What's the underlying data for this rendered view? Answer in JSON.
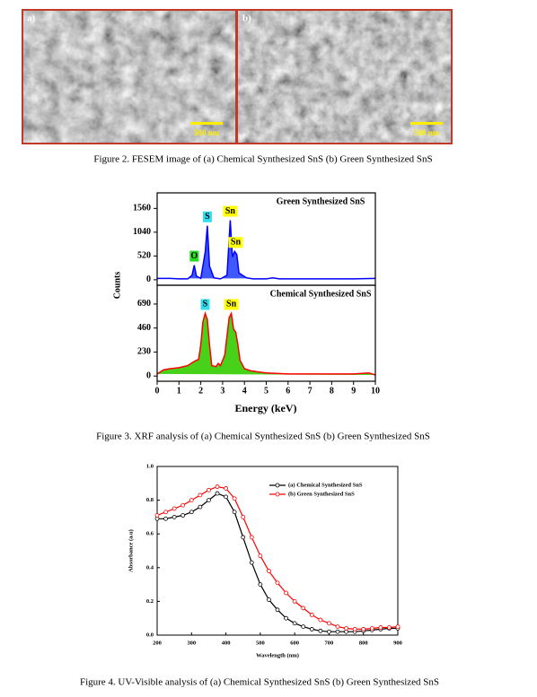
{
  "figures": [
    {
      "caption": "Figure 2. FESEM image of (a) Chemical Synthesized SnS  (b) Green Synthesized SnS",
      "panels": [
        {
          "label": "a)",
          "scale": "500 nm"
        },
        {
          "label": "b)",
          "scale": "500 nm"
        }
      ]
    },
    {
      "caption": "Figure 3. XRF analysis of (a) Chemical Synthesized SnS  (b) Green Synthesized SnS",
      "chart": {
        "type": "area",
        "xlabel": "Energy (keV)",
        "ylabel": "Counts",
        "xlim": [
          0,
          10
        ],
        "xticks": [
          0,
          1,
          2,
          3,
          4,
          5,
          6,
          7,
          8,
          9,
          10
        ],
        "panels": [
          {
            "name": "Green Synthesized SnS",
            "color": "#0000ff",
            "fill": "#1f3cff",
            "ylim": [
              -120,
              1900
            ],
            "yticks": [
              0,
              520,
              1040,
              1560
            ],
            "x": [
              0,
              0.3,
              0.6,
              1.0,
              1.4,
              1.6,
              1.7,
              1.8,
              2.0,
              2.2,
              2.3,
              2.4,
              2.6,
              2.9,
              3.2,
              3.35,
              3.45,
              3.55,
              3.65,
              3.75,
              3.9,
              4.1,
              4.4,
              5.0,
              5.3,
              5.6,
              6,
              7,
              8,
              9,
              10
            ],
            "values": [
              30,
              30,
              30,
              20,
              20,
              100,
              320,
              80,
              30,
              600,
              1180,
              300,
              40,
              20,
              100,
              1300,
              500,
              620,
              550,
              150,
              100,
              40,
              20,
              20,
              40,
              20,
              20,
              20,
              20,
              20,
              30
            ],
            "peaks": [
              {
                "label": "O",
                "x": 1.7,
                "color": "#22dd22"
              },
              {
                "label": "S",
                "x": 2.3,
                "color": "#33ddee"
              },
              {
                "label": "Sn",
                "x": 3.35,
                "color": "#ffff00"
              },
              {
                "label": "Sn",
                "x": 3.6,
                "color": "#ffff00"
              }
            ]
          },
          {
            "name": "Chemical Synthesized SnS",
            "color": "#ff0000",
            "fill": "#33cc00",
            "ylim": [
              -50,
              870
            ],
            "yticks": [
              0,
              230,
              460,
              690
            ],
            "x": [
              0,
              0.3,
              0.6,
              1.0,
              1.4,
              1.7,
              1.9,
              2.0,
              2.1,
              2.2,
              2.3,
              2.4,
              2.5,
              2.7,
              2.8,
              2.9,
              3.1,
              3.3,
              3.4,
              3.5,
              3.6,
              3.7,
              3.8,
              4.0,
              4.3,
              4.6,
              5,
              6,
              7,
              8,
              9,
              9.7,
              10
            ],
            "values": [
              20,
              60,
              70,
              80,
              100,
              140,
              160,
              300,
              520,
              600,
              540,
              300,
              100,
              90,
              120,
              100,
              200,
              560,
              600,
              450,
              420,
              300,
              150,
              70,
              50,
              40,
              30,
              20,
              20,
              20,
              20,
              30,
              10
            ],
            "peaks": [
              {
                "label": "S",
                "x": 2.2,
                "color": "#33ddee"
              },
              {
                "label": "Sn",
                "x": 3.4,
                "color": "#ffff00"
              }
            ]
          }
        ]
      }
    },
    {
      "caption": "Figure 4. UV-Visible analysis of (a) Chemical Synthesized SnS  (b) Green Synthesized SnS",
      "chart": {
        "type": "line",
        "xlabel": "Wavelength (nm)",
        "ylabel": "Absorbance (a.u)",
        "xlim": [
          200,
          900
        ],
        "xticks": [
          200,
          300,
          400,
          500,
          600,
          700,
          800,
          900
        ],
        "ylim": [
          0,
          1.0
        ],
        "yticks": [
          {
            "value": 0,
            "label": "0.0"
          },
          {
            "value": 0.2,
            "label": "0.2"
          },
          {
            "value": 0.4,
            "label": "0.4"
          },
          {
            "value": 0.6,
            "label": "0.6"
          },
          {
            "value": 0.8,
            "label": "0.8"
          },
          {
            "value": 1.0,
            "label": "1.0"
          }
        ],
        "legend": "upper right",
        "x": [
          200,
          225,
          250,
          275,
          300,
          325,
          350,
          375,
          400,
          425,
          450,
          475,
          500,
          525,
          550,
          575,
          600,
          625,
          650,
          675,
          700,
          725,
          750,
          775,
          800,
          825,
          850,
          875,
          900
        ],
        "series": [
          {
            "name": "(a) Chemical Synthesized SnS",
            "color": "#000000",
            "values": [
              0.69,
              0.69,
              0.7,
              0.71,
              0.73,
              0.76,
              0.8,
              0.84,
              0.82,
              0.73,
              0.58,
              0.43,
              0.3,
              0.21,
              0.15,
              0.1,
              0.07,
              0.05,
              0.035,
              0.025,
              0.02,
              0.02,
              0.02,
              0.02,
              0.025,
              0.03,
              0.035,
              0.04,
              0.04
            ]
          },
          {
            "name": "(b) Green Synthesized SnS",
            "color": "#ff0000",
            "values": [
              0.71,
              0.73,
              0.75,
              0.77,
              0.8,
              0.83,
              0.86,
              0.88,
              0.87,
              0.81,
              0.7,
              0.58,
              0.47,
              0.38,
              0.31,
              0.25,
              0.2,
              0.16,
              0.12,
              0.09,
              0.07,
              0.05,
              0.04,
              0.035,
              0.035,
              0.04,
              0.045,
              0.045,
              0.05
            ]
          }
        ]
      }
    }
  ]
}
